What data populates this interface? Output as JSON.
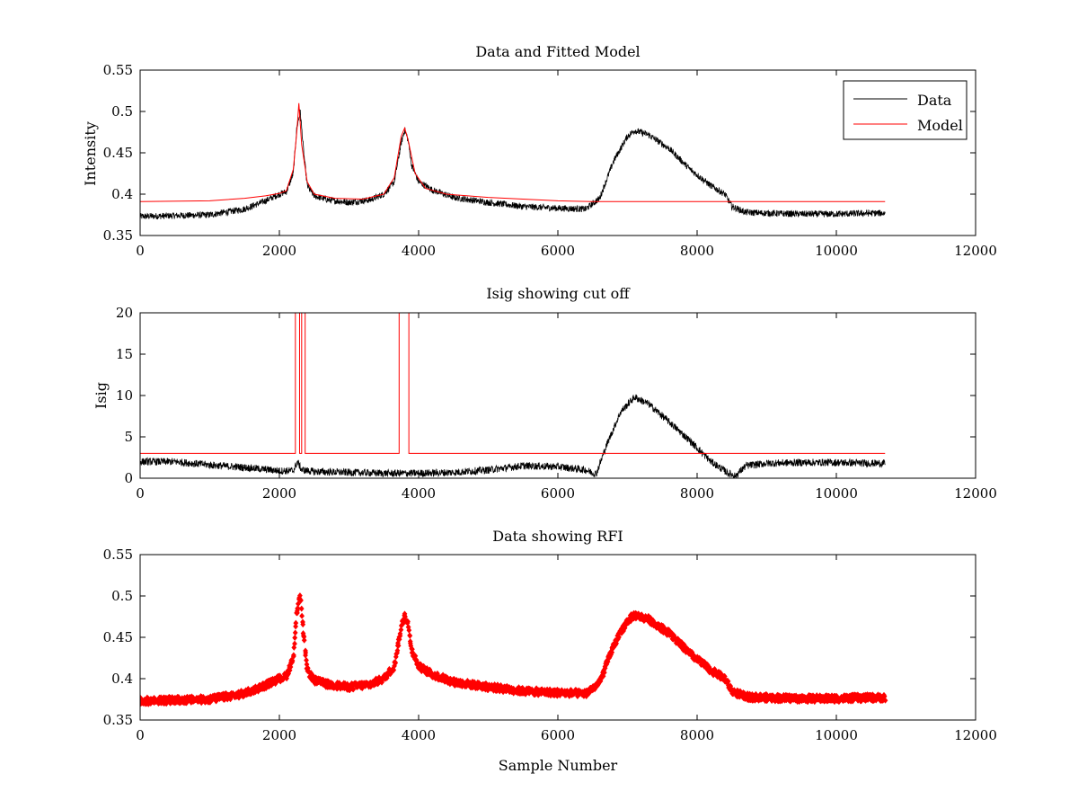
{
  "chart_data": [
    {
      "type": "line",
      "title": "Data and Fitted Model",
      "xlabel": "",
      "ylabel": "Intensity",
      "xlim": [
        0,
        12000
      ],
      "ylim": [
        0.35,
        0.55
      ],
      "xticks": [
        0,
        2000,
        4000,
        6000,
        8000,
        10000,
        12000
      ],
      "yticks": [
        0.35,
        0.4,
        0.45,
        0.5,
        0.55
      ],
      "ytick_labels": [
        "0.35",
        "0.4",
        "0.45",
        "0.5",
        "0.55"
      ],
      "grid": false,
      "legend": {
        "placement": "top-right",
        "entries": [
          "Data",
          "Model"
        ]
      },
      "series": [
        {
          "name": "Data",
          "color": "#000000",
          "style": "line",
          "x": [
            0,
            500,
            1000,
            1500,
            1800,
            2000,
            2100,
            2200,
            2250,
            2300,
            2350,
            2400,
            2500,
            2700,
            3000,
            3300,
            3500,
            3650,
            3750,
            3800,
            3850,
            3900,
            4000,
            4200,
            4500,
            5000,
            5500,
            6000,
            6400,
            6600,
            6800,
            7000,
            7100,
            7300,
            7600,
            7900,
            8200,
            8400,
            8500,
            8700,
            9000,
            9500,
            10000,
            10500,
            10700
          ],
          "y": [
            0.373,
            0.374,
            0.375,
            0.382,
            0.392,
            0.4,
            0.403,
            0.425,
            0.48,
            0.5,
            0.45,
            0.41,
            0.398,
            0.393,
            0.39,
            0.393,
            0.4,
            0.415,
            0.462,
            0.478,
            0.465,
            0.435,
            0.415,
            0.405,
            0.396,
            0.39,
            0.385,
            0.383,
            0.382,
            0.395,
            0.44,
            0.47,
            0.477,
            0.472,
            0.455,
            0.43,
            0.41,
            0.4,
            0.385,
            0.378,
            0.377,
            0.376,
            0.376,
            0.377,
            0.377
          ],
          "noise": 0.004
        },
        {
          "name": "Model",
          "color": "#ff0000",
          "style": "line",
          "x": [
            0,
            1000,
            1500,
            1800,
            2000,
            2100,
            2200,
            2250,
            2280,
            2320,
            2400,
            2500,
            2800,
            3200,
            3500,
            3650,
            3750,
            3800,
            3850,
            3950,
            4100,
            4400,
            5000,
            5500,
            6000,
            6500,
            6600,
            8500,
            10700
          ],
          "y": [
            0.391,
            0.392,
            0.395,
            0.398,
            0.401,
            0.404,
            0.43,
            0.475,
            0.51,
            0.46,
            0.415,
            0.4,
            0.395,
            0.394,
            0.4,
            0.42,
            0.47,
            0.48,
            0.465,
            0.425,
            0.407,
            0.4,
            0.396,
            0.394,
            0.392,
            0.391,
            0.391,
            0.391,
            0.391
          ],
          "noise": 0
        }
      ]
    },
    {
      "type": "line",
      "title": "Isig showing cut off",
      "xlabel": "",
      "ylabel": "Isig",
      "xlim": [
        0,
        12000
      ],
      "ylim": [
        0,
        20
      ],
      "xticks": [
        0,
        2000,
        4000,
        6000,
        8000,
        10000,
        12000
      ],
      "yticks": [
        0,
        5,
        10,
        15,
        20
      ],
      "ytick_labels": [
        "0",
        "5",
        "10",
        "15",
        "20"
      ],
      "grid": false,
      "series": [
        {
          "name": "",
          "color": "#000000",
          "style": "line",
          "x": [
            0,
            500,
            1000,
            1500,
            2000,
            2200,
            2260,
            2320,
            2500,
            3000,
            3500,
            4000,
            4500,
            5000,
            5500,
            6000,
            6400,
            6550,
            6700,
            6900,
            7100,
            7300,
            7600,
            7900,
            8200,
            8450,
            8550,
            8700,
            9000,
            9500,
            10000,
            10500,
            10700
          ],
          "y": [
            2.0,
            2.0,
            1.6,
            1.3,
            0.9,
            0.9,
            2.0,
            1.0,
            0.8,
            0.7,
            0.6,
            0.6,
            0.7,
            1.0,
            1.5,
            1.4,
            1.0,
            0.5,
            4.0,
            8.0,
            9.8,
            9.0,
            6.8,
            4.5,
            2.0,
            0.6,
            0.3,
            1.5,
            1.8,
            1.9,
            1.9,
            1.8,
            1.8
          ],
          "noise": 0.45
        },
        {
          "name": "",
          "color": "#ff0000",
          "style": "line",
          "x": [
            0,
            2230,
            2230,
            2290,
            2290,
            2320,
            2320,
            2370,
            2370,
            3720,
            3720,
            3860,
            3860,
            10700
          ],
          "y": [
            3,
            3,
            20,
            20,
            3,
            3,
            20,
            20,
            3,
            3,
            20,
            20,
            3,
            3
          ],
          "noise": 0
        }
      ]
    },
    {
      "type": "scatter",
      "title": "Data showing RFI",
      "xlabel": "Sample Number",
      "ylabel": "",
      "xlim": [
        0,
        12000
      ],
      "ylim": [
        0.35,
        0.55
      ],
      "xticks": [
        0,
        2000,
        4000,
        6000,
        8000,
        10000,
        12000
      ],
      "yticks": [
        0.35,
        0.4,
        0.45,
        0.5,
        0.55
      ],
      "ytick_labels": [
        "0.35",
        "0.4",
        "0.45",
        "0.5",
        "0.55"
      ],
      "grid": false,
      "series": [
        {
          "name": "",
          "color": "#ff0000",
          "style": "markers",
          "x": [
            0,
            500,
            1000,
            1500,
            1800,
            2000,
            2100,
            2200,
            2250,
            2300,
            2350,
            2400,
            2500,
            2700,
            3000,
            3300,
            3500,
            3650,
            3750,
            3800,
            3850,
            3900,
            4000,
            4200,
            4500,
            5000,
            5500,
            6000,
            6400,
            6600,
            6800,
            7000,
            7100,
            7300,
            7600,
            7900,
            8200,
            8400,
            8500,
            8700,
            9000,
            9500,
            10000,
            10500,
            10700
          ],
          "y": [
            0.373,
            0.374,
            0.375,
            0.382,
            0.392,
            0.4,
            0.403,
            0.425,
            0.48,
            0.5,
            0.45,
            0.41,
            0.398,
            0.393,
            0.39,
            0.393,
            0.4,
            0.415,
            0.462,
            0.478,
            0.465,
            0.435,
            0.415,
            0.405,
            0.396,
            0.39,
            0.385,
            0.383,
            0.382,
            0.395,
            0.44,
            0.47,
            0.477,
            0.472,
            0.455,
            0.43,
            0.41,
            0.4,
            0.385,
            0.378,
            0.377,
            0.376,
            0.376,
            0.377,
            0.377
          ],
          "noise": 0.004
        }
      ]
    }
  ]
}
